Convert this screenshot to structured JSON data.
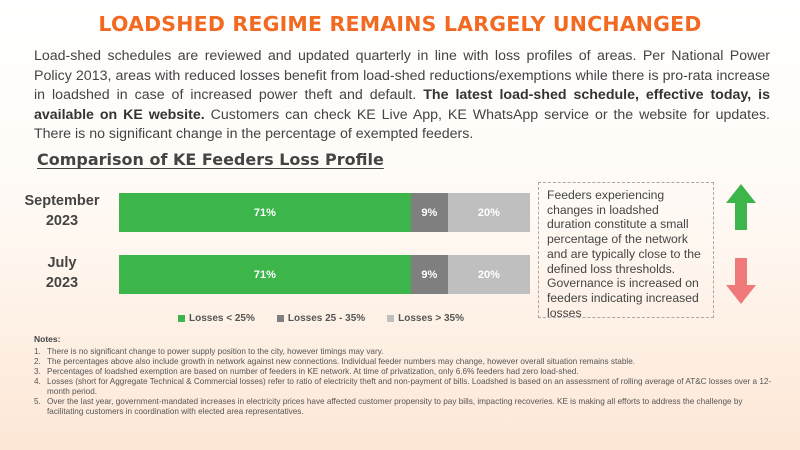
{
  "header": {
    "title": "LOADSHED REGIME REMAINS LARGELY UNCHANGED",
    "intro_part1": "Load-shed schedules are reviewed and updated quarterly in line with loss profiles of areas. Per National Power Policy 2013, areas with reduced losses benefit from load-shed reductions/exemptions while there is pro-rata increase in loadshed in case of increased power theft and default. ",
    "intro_bold": "The latest load-shed schedule, effective today, is available on KE website.",
    "intro_part2": " Customers can check KE Live App, KE WhatsApp service or the website for updates. There is no significant change in the percentage of exempted feeders."
  },
  "chart_data": {
    "type": "bar",
    "orientation": "horizontal",
    "stacked": true,
    "title": "Comparison of KE Feeders Loss Profile",
    "categories": [
      "September 2023",
      "July 2023"
    ],
    "category_lines": [
      [
        "September",
        "2023"
      ],
      [
        "July",
        "2023"
      ]
    ],
    "series": [
      {
        "name": "Losses < 25%",
        "values": [
          71,
          71
        ],
        "labels": [
          "71%",
          "71%"
        ],
        "color": "#3cb54a"
      },
      {
        "name": "Losses 25 - 35%",
        "values": [
          9,
          9
        ],
        "labels": [
          "9%",
          "9%"
        ],
        "color": "#7f7f7f"
      },
      {
        "name": "Losses > 35%",
        "values": [
          20,
          20
        ],
        "labels": [
          "20%",
          "20%"
        ],
        "color": "#bfbfbf"
      }
    ],
    "xlim": [
      0,
      100
    ],
    "legend_position": "bottom",
    "grid": false
  },
  "callout": {
    "text": "Feeders experiencing changes in loadshed duration constitute a small percentage of the network and are typically close to the defined loss thresholds. Governance is increased on feeders indicating increased losses",
    "up_arrow_color": "#3cb54a",
    "down_arrow_color": "#f07a7a"
  },
  "notes": {
    "heading": "Notes:",
    "items": [
      {
        "num": "1.",
        "text": "There is no significant change to power supply position to the city, however timings may vary."
      },
      {
        "num": "2.",
        "text": "The percentages above also include growth in network against new connections. Individual feeder numbers may change, however overall situation remains stable."
      },
      {
        "num": "3.",
        "text": "Percentages of loadshed exemption are based on number of feeders in KE network. At time of privatization, only 6.6% feeders had zero load-shed."
      },
      {
        "num": "4.",
        "text": "Losses (short for Aggregate Technical & Commercial losses) refer to ratio of electricity theft and non-payment of bills. Loadshed is based on an assessment of rolling average of AT&C losses over a 12-month period."
      },
      {
        "num": "5.",
        "text": "Over the last year, government-mandated increases in electricity prices have affected customer propensity to pay bills, impacting recoveries. KE is making all efforts to address the challenge by facilitating customers in coordination with elected area representatives."
      }
    ]
  }
}
